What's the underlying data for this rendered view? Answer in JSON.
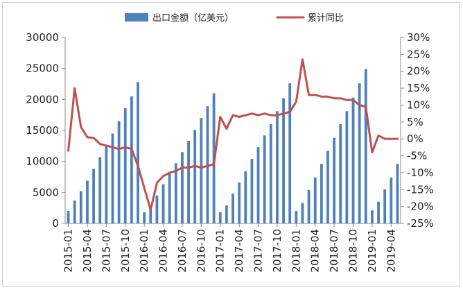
{
  "chart_data": {
    "type": "bar+line",
    "categories": [
      "2015-01",
      "2015-02",
      "2015-03",
      "2015-04",
      "2015-05",
      "2015-06",
      "2015-07",
      "2015-08",
      "2015-09",
      "2015-10",
      "2015-11",
      "2015-12",
      "2016-01",
      "2016-02",
      "2016-03",
      "2016-04",
      "2016-05",
      "2016-06",
      "2016-07",
      "2016-08",
      "2016-09",
      "2016-10",
      "2016-11",
      "2016-12",
      "2017-01",
      "2017-02",
      "2017-03",
      "2017-04",
      "2017-05",
      "2017-06",
      "2017-07",
      "2017-08",
      "2017-09",
      "2017-10",
      "2017-11",
      "2017-12",
      "2018-01",
      "2018-02",
      "2018-03",
      "2018-04",
      "2018-05",
      "2018-06",
      "2018-07",
      "2018-08",
      "2018-09",
      "2018-10",
      "2018-11",
      "2018-12",
      "2019-01",
      "2019-02",
      "2019-03",
      "2019-04",
      "2019-05"
    ],
    "x_tick_labels": [
      "2015-01",
      "2015-04",
      "2015-07",
      "2015-10",
      "2016-01",
      "2016-04",
      "2016-07",
      "2016-10",
      "2017-01",
      "2017-04",
      "2017-07",
      "2017-10",
      "2018-01",
      "2018-04",
      "2018-07",
      "2018-10",
      "2019-01",
      "2019-04"
    ],
    "series": [
      {
        "name": "出口金额（亿美元）",
        "type": "bar",
        "axis": "left",
        "color": "#4f81bd",
        "values": [
          2000,
          3700,
          5200,
          6900,
          8800,
          10700,
          12600,
          14500,
          16500,
          18600,
          20500,
          22800,
          1800,
          2700,
          4500,
          6300,
          8000,
          9700,
          11500,
          13300,
          15100,
          17000,
          18900,
          21000,
          1800,
          2900,
          4800,
          6600,
          8400,
          10400,
          12300,
          14200,
          16000,
          18100,
          20200,
          22600,
          2000,
          3300,
          5400,
          7400,
          9600,
          11700,
          13800,
          16000,
          18100,
          20300,
          22600,
          24900,
          2100,
          3500,
          5500,
          7400,
          9600
        ]
      },
      {
        "name": "累计同比",
        "type": "line",
        "axis": "right",
        "color": "#c0504d",
        "values": [
          -3.5,
          15,
          3.5,
          0.5,
          0.3,
          -1.5,
          -2,
          -2.5,
          -3,
          -2.5,
          -3,
          -8,
          -14.5,
          -21,
          -13,
          -11,
          -10,
          -9.5,
          -8.5,
          -8.5,
          -8,
          -8.5,
          -8,
          -7.5,
          6.5,
          3,
          7,
          6.5,
          7,
          7.5,
          7,
          7.5,
          7,
          7,
          7.5,
          8,
          11,
          23.5,
          13,
          13,
          12.5,
          12.5,
          12,
          12,
          11.5,
          11.5,
          10,
          9.5,
          -4,
          1,
          0,
          0,
          0
        ]
      }
    ],
    "y_left": {
      "min": 0,
      "max": 30000,
      "step": 5000,
      "tick_labels": [
        "0",
        "5000",
        "10000",
        "15000",
        "20000",
        "25000",
        "30000"
      ]
    },
    "y_right": {
      "min": -25,
      "max": 30,
      "step": 5,
      "tick_labels": [
        "-25%",
        "-20%",
        "-15%",
        "-10%",
        "-5%",
        "0%",
        "5%",
        "10%",
        "15%",
        "20%",
        "25%",
        "30%"
      ]
    },
    "legend": {
      "placement": "top",
      "items": [
        {
          "label": "出口金额（亿美元）",
          "marker": "bar",
          "color": "#4f81bd"
        },
        {
          "label": "累计同比",
          "marker": "line",
          "color": "#c0504d"
        }
      ]
    },
    "grid": false,
    "title": "",
    "xlabel": "",
    "ylabel": ""
  }
}
